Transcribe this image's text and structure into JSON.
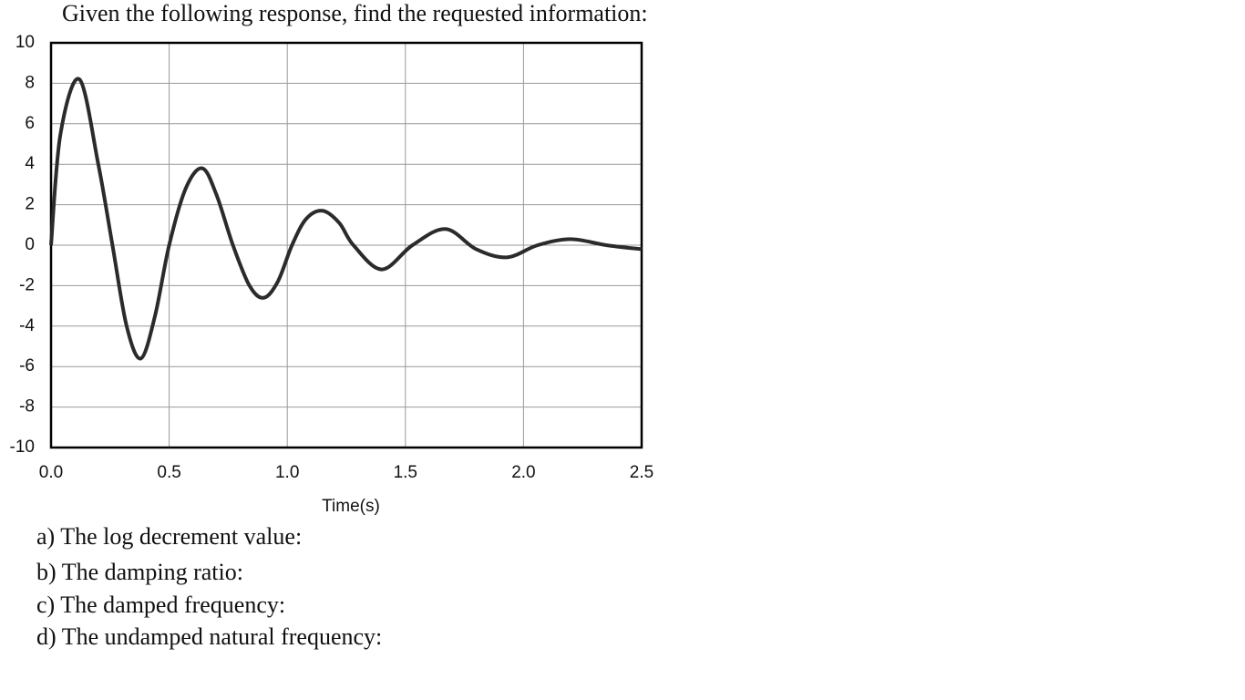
{
  "title": "Given the following response, find the requested information:",
  "chart_data": {
    "type": "line",
    "x_label": "Time(s)",
    "x": [
      0,
      0.04,
      0.12,
      0.2,
      0.26,
      0.32,
      0.38,
      0.44,
      0.5,
      0.57,
      0.64,
      0.7,
      0.77,
      0.84,
      0.9,
      0.96,
      1.02,
      1.08,
      1.15,
      1.22,
      1.28,
      1.4,
      1.53,
      1.67,
      1.8,
      1.93,
      2.06,
      2.2,
      2.35,
      2.5
    ],
    "series": [
      {
        "color": "#2b2b2b",
        "values": [
          0,
          5.5,
          8.2,
          4,
          0,
          -4,
          -5.6,
          -3.5,
          0,
          2.8,
          3.8,
          2.5,
          0,
          -2,
          -2.6,
          -1.8,
          0,
          1.3,
          1.7,
          1.1,
          0,
          -1.2,
          0,
          0.8,
          -0.2,
          -0.6,
          0,
          0.3,
          0,
          -0.2
        ]
      }
    ],
    "xlim": [
      0,
      2.5
    ],
    "ylim": [
      -10,
      10
    ],
    "xticks": [
      {
        "value": 0,
        "label": "0.0"
      },
      0.5,
      {
        "value": 1,
        "label": "1.0"
      },
      1.5,
      {
        "value": 2,
        "label": "2.0"
      },
      2.5
    ],
    "yticks": [
      10,
      8,
      6,
      4,
      2,
      0,
      -2,
      -4,
      -6,
      -8,
      -10
    ],
    "grid": true
  },
  "questions": [
    "a) The log decrement value:",
    "b) The damping ratio:",
    "c) The damped frequency:",
    "d) The undamped natural frequency:"
  ]
}
